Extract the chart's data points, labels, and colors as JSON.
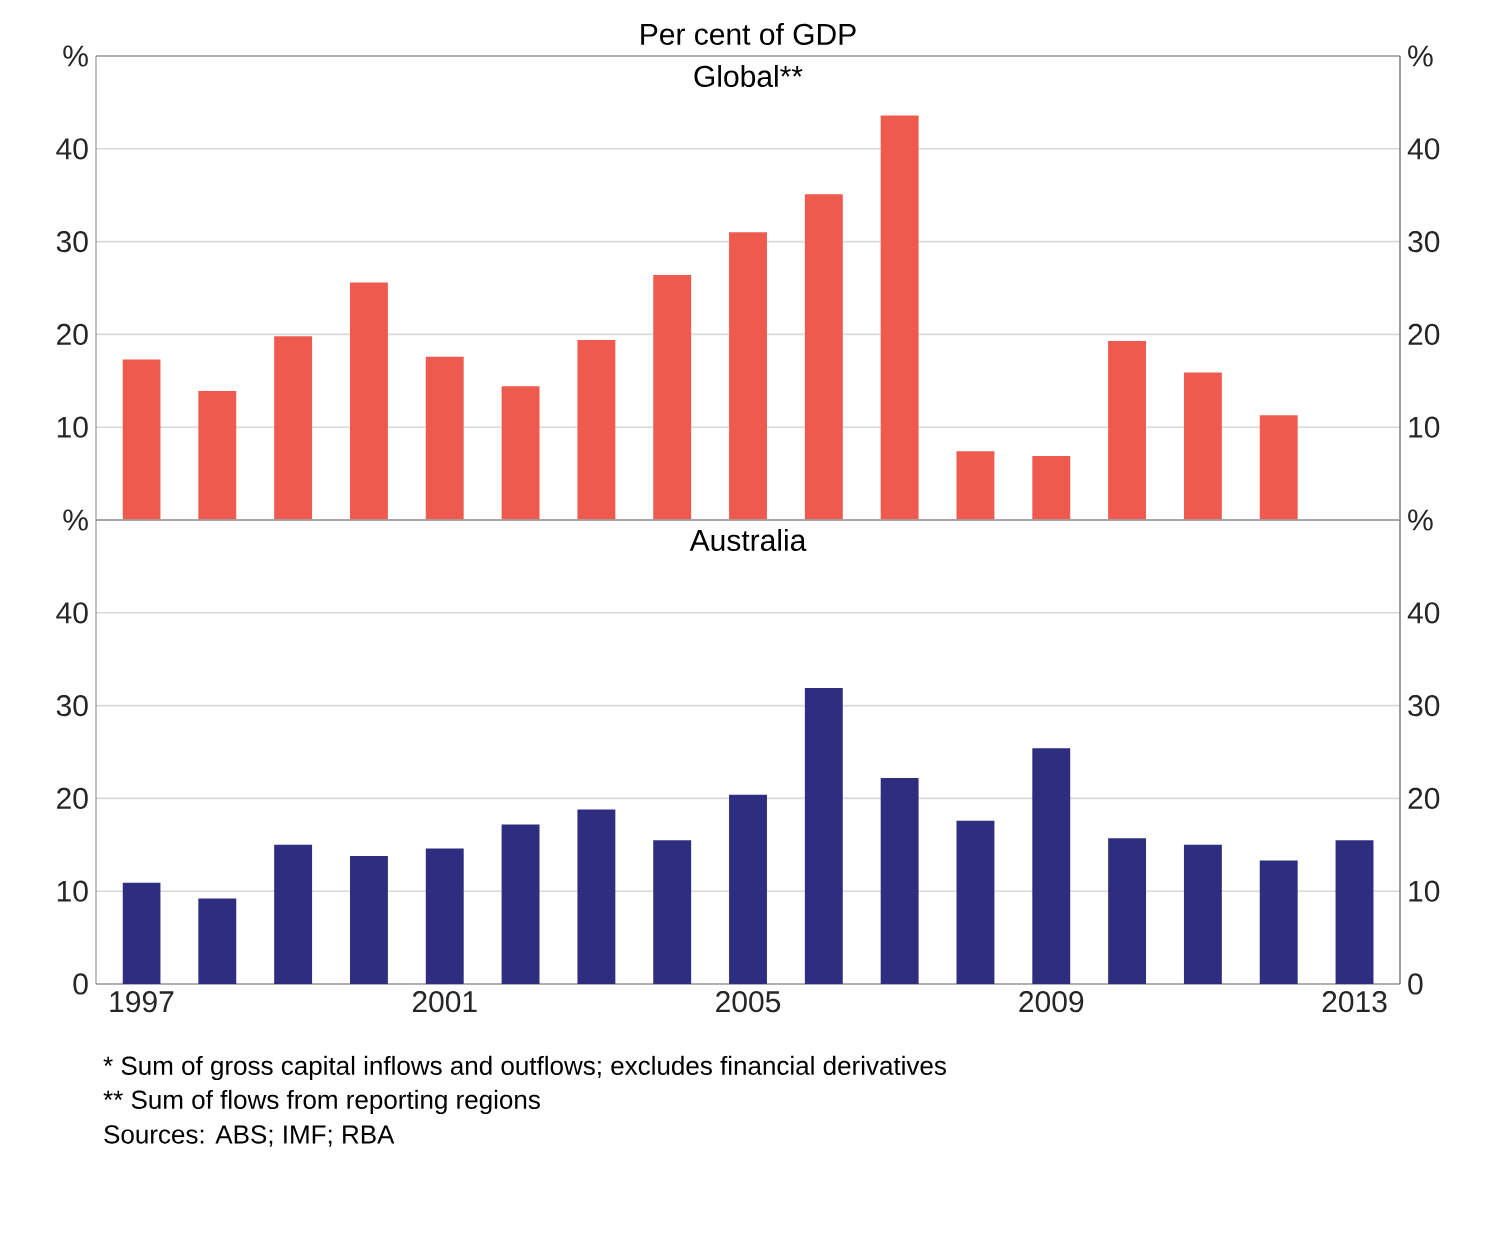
{
  "chart_data": [
    {
      "type": "bar",
      "title": "Global**",
      "subtitle": "Per cent of GDP",
      "categories": [
        "1997",
        null,
        null,
        null,
        "2001",
        null,
        null,
        null,
        "2005",
        null,
        null,
        null,
        "2009",
        null,
        null,
        null,
        "2013"
      ],
      "color": "#ef5a4f",
      "values": [
        17.3,
        13.9,
        19.8,
        25.6,
        17.6,
        14.4,
        19.4,
        26.4,
        31.0,
        35.1,
        43.6,
        7.4,
        6.9,
        19.3,
        15.9,
        11.3,
        null
      ],
      "ylim": [
        0,
        50
      ],
      "yticks": [
        10,
        20,
        30,
        40,
        {
          "value": 50,
          "label": "%"
        }
      ],
      "y2lim": [
        0,
        50
      ],
      "y2ticks": [
        10,
        20,
        30,
        40,
        {
          "value": 50,
          "label": "%"
        }
      ],
      "grid": "y",
      "tick_labels": "y"
    },
    {
      "type": "bar",
      "title": "Australia",
      "categories": [
        "1997",
        null,
        null,
        null,
        "2001",
        null,
        null,
        null,
        "2005",
        null,
        null,
        null,
        "2009",
        null,
        null,
        null,
        "2013"
      ],
      "color": "#2e2d7f",
      "values": [
        10.9,
        9.2,
        15.0,
        13.8,
        14.6,
        17.2,
        18.8,
        15.5,
        20.4,
        31.9,
        22.2,
        17.6,
        25.4,
        15.7,
        15.0,
        13.3,
        15.5
      ],
      "ylim": [
        0,
        50
      ],
      "yticks": [
        0,
        10,
        20,
        30,
        40,
        {
          "value": 50,
          "label": "%"
        }
      ],
      "y2lim": [
        0,
        50
      ],
      "y2ticks": [
        0,
        10,
        20,
        30,
        40,
        {
          "value": 50,
          "label": "%"
        }
      ],
      "grid": "y",
      "annotations": [
        "*    Sum of gross capital inflows and outflows; excludes financial derivatives",
        "**   Sum of flows from reporting regions",
        "Sources: ABS; IMF; RBA"
      ]
    }
  ]
}
